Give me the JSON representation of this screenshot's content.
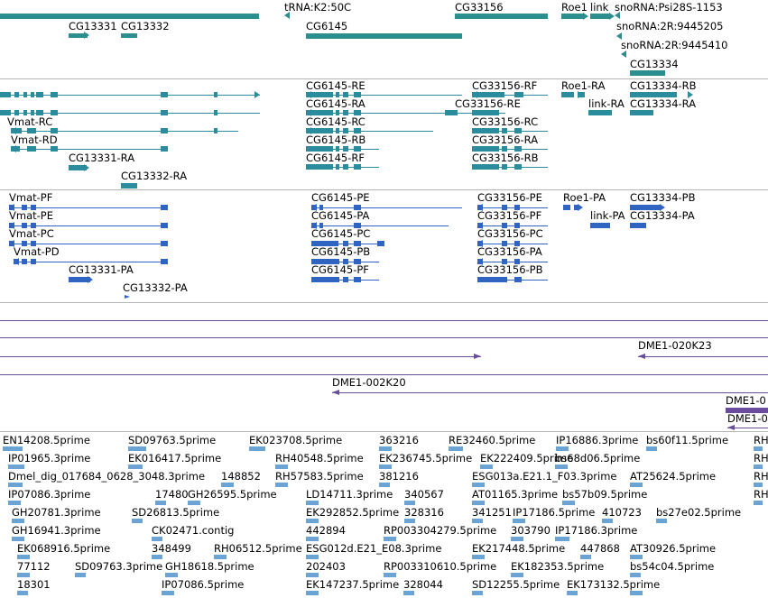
{
  "colors": {
    "gene": "#2c8e8e",
    "transcript_a": "#2a8c9c",
    "transcript_b": "#2f64c2",
    "clone": "#6a4c9c",
    "est": "#6ba3d4",
    "divider": "#b5b5b5"
  },
  "gene_track": {
    "labels": [
      "tRNA:K2:50C",
      "CG33156",
      "Roe1",
      "link",
      "snoRNA:Psi28S-1153",
      "CG13331",
      "CG13332",
      "snoRNA:2R:9445205",
      "CG6145",
      "snoRNA:2R:9445410",
      "CG13334"
    ]
  },
  "transcript_track_1": {
    "labels": [
      "CG6145-RE",
      "CG33156-RF",
      "Roe1-RA",
      "CG13334-RB",
      "CG6145-RA",
      "CG33156-RE",
      "link-RA",
      "CG13334-RA",
      "Vmat-RC",
      "CG6145-RC",
      "CG33156-RC",
      "Vmat-RD",
      "CG6145-RB",
      "CG33156-RA",
      "CG13331-RA",
      "CG6145-RF",
      "CG33156-RB",
      "CG13332-RA"
    ]
  },
  "transcript_track_2": {
    "labels": [
      "Vmat-PF",
      "CG6145-PE",
      "CG33156-PE",
      "Roe1-PA",
      "CG13334-PB",
      "Vmat-PE",
      "CG6145-PA",
      "CG33156-PF",
      "link-PA",
      "CG13334-PA",
      "Vmat-PC",
      "CG6145-PC",
      "CG33156-PC",
      "Vmat-PD",
      "CG6145-PB",
      "CG33156-PA",
      "CG13331-PA",
      "CG6145-PF",
      "CG33156-PB",
      "CG13332-PA"
    ]
  },
  "clone_track": {
    "labels": [
      "DME1-020K23",
      "DME1-002K20",
      "DME1-0",
      "DME1-0"
    ]
  },
  "est_track": {
    "labels": [
      "EN14208.5prime",
      "SD09763.5prime",
      "EK023708.5prime",
      "363216",
      "RE32460.5prime",
      "IP16886.3prime",
      "bs60f11.5prime",
      "RH",
      "IP01965.3prime",
      "EK016417.5prime",
      "RH40548.5prime",
      "EK236745.5prime",
      "EK222409.5prime",
      "bs68d06.5prime",
      "RH",
      "Dmel_dig_017684_0628_3048.3prime",
      "148852",
      "RH57583.5prime",
      "381216",
      "ESG013a.E21.1_F03.3prime",
      "AT25624.5prime",
      "RH",
      "IP07086.3prime",
      "17480",
      "GH26595.5prime",
      "LD14711.3prime",
      "340567",
      "AT01165.3prime",
      "bs57b09.5prime",
      "RH",
      "GH20781.3prime",
      "SD26813.5prime",
      "EK292852.5prime",
      "328316",
      "341251",
      "IP17186.5prime",
      "410723",
      "bs27e02.5prime",
      "GH16941.3prime",
      "CK02471.contig",
      "442894",
      "RP003304279.5prime",
      "303790",
      "IP17186.3prime",
      "EK068916.5prime",
      "348499",
      "RH06512.5prime",
      "ESG012d.E21_E08.3prime",
      "EK217448.5prime",
      "447868",
      "AT30926.5prime",
      "77112",
      "SD09763.3prime",
      "GH18618.5prime",
      "202403",
      "RP003310610.5prime",
      "EK182353.5prime",
      "bs54c04.5prime",
      "18301",
      "IP07086.5prime",
      "EK147237.5prime",
      "328044",
      "SD12255.5prime",
      "EK173132.5prime"
    ]
  }
}
